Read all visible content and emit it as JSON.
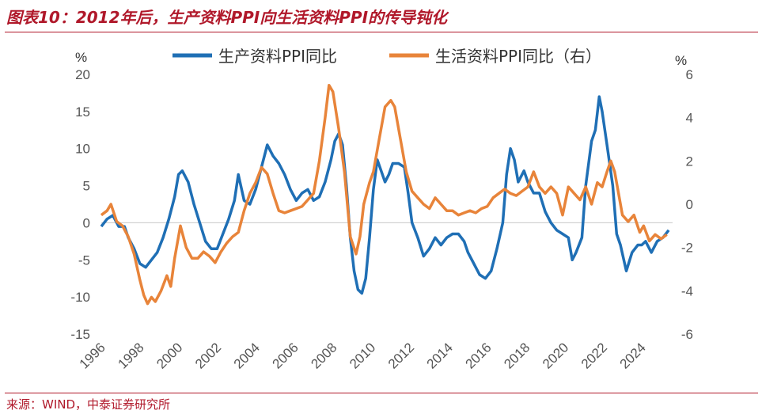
{
  "title": "图表10：2012年后，生产资料PPI向生活资料PPI的传导钝化",
  "source": "来源：WIND，中泰证券研究所",
  "chart_data": {
    "type": "line",
    "title": "图表10：2012年后，生产资料PPI向生活资料PPI的传导钝化",
    "x_range": [
      1996,
      2025.6
    ],
    "xticks": [
      "1996",
      "1998",
      "2000",
      "2002",
      "2004",
      "2006",
      "2008",
      "2010",
      "2012",
      "2014",
      "2016",
      "2018",
      "2020",
      "2022",
      "2024"
    ],
    "left_axis": {
      "label": "%",
      "ylim": [
        -15,
        20
      ],
      "ticks": [
        "20",
        "15",
        "10",
        "5",
        "0",
        "-5",
        "-10",
        "-15"
      ]
    },
    "right_axis": {
      "label": "%",
      "ylim": [
        -6,
        6
      ],
      "ticks": [
        "6",
        "4",
        "2",
        "0",
        "-2",
        "-4",
        "-6"
      ]
    },
    "series": [
      {
        "name": "生产资料PPI同比",
        "axis": "left",
        "color": "#1f6fb5",
        "points": [
          [
            1996.0,
            -0.5
          ],
          [
            1996.3,
            0.5
          ],
          [
            1996.6,
            1.0
          ],
          [
            1996.9,
            -0.5
          ],
          [
            1997.2,
            -0.5
          ],
          [
            1997.4,
            -2.0
          ],
          [
            1997.7,
            -3.5
          ],
          [
            1998.0,
            -5.5
          ],
          [
            1998.3,
            -6.0
          ],
          [
            1998.6,
            -5.0
          ],
          [
            1998.9,
            -4.0
          ],
          [
            1999.2,
            -2.0
          ],
          [
            1999.5,
            0.5
          ],
          [
            1999.8,
            3.5
          ],
          [
            2000.0,
            6.5
          ],
          [
            2000.2,
            7.0
          ],
          [
            2000.5,
            5.5
          ],
          [
            2000.8,
            2.5
          ],
          [
            2001.1,
            0.0
          ],
          [
            2001.4,
            -2.5
          ],
          [
            2001.7,
            -3.5
          ],
          [
            2002.0,
            -3.5
          ],
          [
            2002.3,
            -1.5
          ],
          [
            2002.6,
            0.5
          ],
          [
            2002.9,
            3.0
          ],
          [
            2003.1,
            6.5
          ],
          [
            2003.4,
            3.0
          ],
          [
            2003.7,
            2.5
          ],
          [
            2004.0,
            4.5
          ],
          [
            2004.3,
            7.5
          ],
          [
            2004.6,
            10.5
          ],
          [
            2004.9,
            9.0
          ],
          [
            2005.2,
            8.0
          ],
          [
            2005.5,
            6.5
          ],
          [
            2005.8,
            4.5
          ],
          [
            2006.1,
            3.0
          ],
          [
            2006.4,
            4.0
          ],
          [
            2006.7,
            4.5
          ],
          [
            2007.0,
            3.0
          ],
          [
            2007.3,
            3.5
          ],
          [
            2007.6,
            5.5
          ],
          [
            2007.9,
            8.5
          ],
          [
            2008.1,
            11.0
          ],
          [
            2008.3,
            12.0
          ],
          [
            2008.5,
            10.5
          ],
          [
            2008.7,
            5.0
          ],
          [
            2008.9,
            -2.0
          ],
          [
            2009.1,
            -6.5
          ],
          [
            2009.3,
            -9.0
          ],
          [
            2009.5,
            -9.5
          ],
          [
            2009.7,
            -7.5
          ],
          [
            2009.9,
            -2.0
          ],
          [
            2010.1,
            4.5
          ],
          [
            2010.3,
            8.5
          ],
          [
            2010.5,
            7.0
          ],
          [
            2010.7,
            5.5
          ],
          [
            2010.9,
            6.5
          ],
          [
            2011.1,
            8.0
          ],
          [
            2011.4,
            8.0
          ],
          [
            2011.7,
            7.5
          ],
          [
            2011.9,
            4.0
          ],
          [
            2012.1,
            0.0
          ],
          [
            2012.4,
            -2.0
          ],
          [
            2012.7,
            -4.5
          ],
          [
            2013.0,
            -3.5
          ],
          [
            2013.3,
            -2.0
          ],
          [
            2013.6,
            -3.0
          ],
          [
            2013.9,
            -2.0
          ],
          [
            2014.2,
            -1.5
          ],
          [
            2014.5,
            -1.5
          ],
          [
            2014.8,
            -2.5
          ],
          [
            2015.0,
            -4.0
          ],
          [
            2015.3,
            -5.5
          ],
          [
            2015.6,
            -7.0
          ],
          [
            2015.9,
            -7.5
          ],
          [
            2016.2,
            -6.5
          ],
          [
            2016.5,
            -3.5
          ],
          [
            2016.8,
            0.0
          ],
          [
            2017.0,
            6.5
          ],
          [
            2017.2,
            10.0
          ],
          [
            2017.4,
            8.5
          ],
          [
            2017.6,
            5.5
          ],
          [
            2017.9,
            7.0
          ],
          [
            2018.1,
            5.5
          ],
          [
            2018.4,
            4.0
          ],
          [
            2018.7,
            4.0
          ],
          [
            2019.0,
            1.5
          ],
          [
            2019.3,
            0.0
          ],
          [
            2019.6,
            -1.0
          ],
          [
            2019.9,
            -1.5
          ],
          [
            2020.2,
            -2.0
          ],
          [
            2020.4,
            -5.0
          ],
          [
            2020.6,
            -4.0
          ],
          [
            2020.9,
            -2.0
          ],
          [
            2021.1,
            5.0
          ],
          [
            2021.4,
            11.0
          ],
          [
            2021.6,
            12.5
          ],
          [
            2021.8,
            17.0
          ],
          [
            2021.95,
            15.0
          ],
          [
            2022.2,
            10.5
          ],
          [
            2022.5,
            5.0
          ],
          [
            2022.7,
            -1.5
          ],
          [
            2022.9,
            -3.0
          ],
          [
            2023.2,
            -6.5
          ],
          [
            2023.5,
            -4.0
          ],
          [
            2023.8,
            -3.0
          ],
          [
            2024.0,
            -3.0
          ],
          [
            2024.2,
            -2.5
          ],
          [
            2024.5,
            -4.0
          ],
          [
            2024.8,
            -2.5
          ],
          [
            2025.1,
            -2.0
          ],
          [
            2025.4,
            -1.0
          ]
        ]
      },
      {
        "name": "生活资料PPI同比（右）",
        "axis": "right",
        "color": "#e8843a",
        "points": [
          [
            1996.0,
            -0.5
          ],
          [
            1996.3,
            -0.3
          ],
          [
            1996.5,
            0.0
          ],
          [
            1996.8,
            -0.8
          ],
          [
            1997.1,
            -1.0
          ],
          [
            1997.4,
            -1.5
          ],
          [
            1997.7,
            -2.3
          ],
          [
            1998.0,
            -3.5
          ],
          [
            1998.2,
            -4.2
          ],
          [
            1998.4,
            -4.6
          ],
          [
            1998.6,
            -4.3
          ],
          [
            1998.8,
            -4.5
          ],
          [
            1999.1,
            -4.0
          ],
          [
            1999.4,
            -3.3
          ],
          [
            1999.6,
            -3.8
          ],
          [
            1999.8,
            -2.5
          ],
          [
            2000.1,
            -1.0
          ],
          [
            2000.4,
            -2.0
          ],
          [
            2000.7,
            -2.5
          ],
          [
            2001.0,
            -2.5
          ],
          [
            2001.3,
            -2.2
          ],
          [
            2001.6,
            -2.4
          ],
          [
            2001.9,
            -2.7
          ],
          [
            2002.2,
            -2.2
          ],
          [
            2002.5,
            -1.8
          ],
          [
            2002.8,
            -1.5
          ],
          [
            2003.1,
            -1.3
          ],
          [
            2003.4,
            -0.3
          ],
          [
            2003.7,
            0.5
          ],
          [
            2004.0,
            1.0
          ],
          [
            2004.3,
            1.7
          ],
          [
            2004.6,
            1.4
          ],
          [
            2004.9,
            0.5
          ],
          [
            2005.2,
            -0.3
          ],
          [
            2005.5,
            -0.4
          ],
          [
            2005.8,
            -0.3
          ],
          [
            2006.1,
            -0.2
          ],
          [
            2006.4,
            -0.1
          ],
          [
            2006.7,
            0.2
          ],
          [
            2007.0,
            0.5
          ],
          [
            2007.3,
            2.0
          ],
          [
            2007.6,
            4.0
          ],
          [
            2007.8,
            5.5
          ],
          [
            2008.0,
            5.2
          ],
          [
            2008.3,
            3.5
          ],
          [
            2008.6,
            1.5
          ],
          [
            2008.9,
            -1.5
          ],
          [
            2009.2,
            -2.3
          ],
          [
            2009.4,
            -1.5
          ],
          [
            2009.6,
            0.0
          ],
          [
            2009.9,
            1.0
          ],
          [
            2010.1,
            1.5
          ],
          [
            2010.4,
            3.0
          ],
          [
            2010.7,
            4.5
          ],
          [
            2011.0,
            4.8
          ],
          [
            2011.2,
            4.5
          ],
          [
            2011.5,
            3.0
          ],
          [
            2011.8,
            1.5
          ],
          [
            2012.1,
            0.6
          ],
          [
            2012.4,
            0.3
          ],
          [
            2012.7,
            0.0
          ],
          [
            2013.0,
            -0.2
          ],
          [
            2013.3,
            0.3
          ],
          [
            2013.6,
            0.0
          ],
          [
            2013.9,
            -0.3
          ],
          [
            2014.2,
            -0.3
          ],
          [
            2014.5,
            -0.5
          ],
          [
            2014.8,
            -0.4
          ],
          [
            2015.1,
            -0.3
          ],
          [
            2015.4,
            -0.4
          ],
          [
            2015.7,
            -0.2
          ],
          [
            2016.0,
            -0.1
          ],
          [
            2016.3,
            0.3
          ],
          [
            2016.6,
            0.5
          ],
          [
            2016.9,
            0.7
          ],
          [
            2017.2,
            0.5
          ],
          [
            2017.5,
            0.4
          ],
          [
            2017.8,
            0.6
          ],
          [
            2018.1,
            0.8
          ],
          [
            2018.4,
            1.5
          ],
          [
            2018.7,
            0.8
          ],
          [
            2019.0,
            0.5
          ],
          [
            2019.3,
            0.8
          ],
          [
            2019.6,
            0.5
          ],
          [
            2019.9,
            -0.5
          ],
          [
            2020.2,
            0.8
          ],
          [
            2020.5,
            0.5
          ],
          [
            2020.8,
            0.2
          ],
          [
            2021.1,
            0.8
          ],
          [
            2021.4,
            0.0
          ],
          [
            2021.7,
            1.0
          ],
          [
            2021.95,
            0.8
          ],
          [
            2022.2,
            1.5
          ],
          [
            2022.4,
            2.0
          ],
          [
            2022.6,
            1.5
          ],
          [
            2022.8,
            0.5
          ],
          [
            2023.0,
            -0.5
          ],
          [
            2023.3,
            -0.8
          ],
          [
            2023.6,
            -0.5
          ],
          [
            2023.9,
            -1.3
          ],
          [
            2024.1,
            -1.0
          ],
          [
            2024.4,
            -1.7
          ],
          [
            2024.7,
            -1.4
          ],
          [
            2025.0,
            -1.6
          ],
          [
            2025.3,
            -1.4
          ]
        ]
      }
    ]
  }
}
